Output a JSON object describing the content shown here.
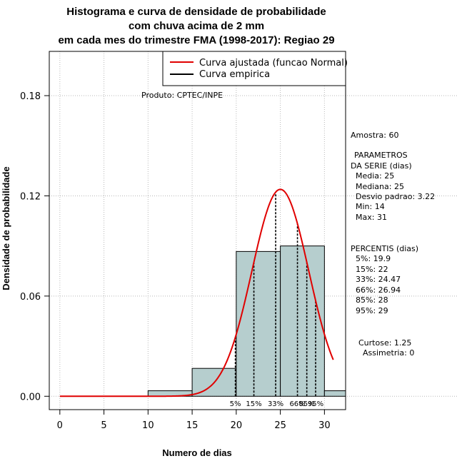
{
  "chart_data": {
    "type": "histogram",
    "title_lines": [
      "Histograma e curva de densidade de probabilidade",
      "com chuva acima de 2 mm",
      "em cada mes do trimestre FMA (1998-2017): Regiao 29"
    ],
    "xlabel": "Numero de dias",
    "ylabel": "Densidade de probabilidade",
    "xlim": [
      -1.2,
      32.4
    ],
    "ylim": [
      -0.008,
      0.2065
    ],
    "x_ticks": [
      0,
      5,
      10,
      15,
      20,
      25,
      30
    ],
    "y_ticks": [
      0.0,
      0.06,
      0.12,
      0.18
    ],
    "y_tick_labels": [
      "0.00",
      "0.06",
      "0.12",
      "0.18"
    ],
    "bins": [
      {
        "start": 10,
        "end": 15,
        "density": 0.0033
      },
      {
        "start": 15,
        "end": 20,
        "density": 0.0167
      },
      {
        "start": 20,
        "end": 25,
        "density": 0.0867
      },
      {
        "start": 25,
        "end": 30,
        "density": 0.09
      },
      {
        "start": 30,
        "end": 35,
        "density": 0.0033
      }
    ],
    "curve": {
      "name": "Curva ajustada (funcao Normal)",
      "mean": 25,
      "sd": 3.22,
      "x_from": 0,
      "x_to": 31,
      "color": "#e00000"
    },
    "empirical_name": "Curva empirica",
    "percentile_lines": [
      {
        "label": "5%",
        "x": 19.9
      },
      {
        "label": "15%",
        "x": 22
      },
      {
        "label": "33%",
        "x": 24.47
      },
      {
        "label": "66%",
        "x": 26.94
      },
      {
        "label": "85%",
        "x": 28
      },
      {
        "label": "95%",
        "x": 29
      }
    ],
    "bar_color": "#b6cece",
    "grid_color": "#b8b8b8",
    "product_label": "Produto: CPTEC/INPE"
  },
  "side_panel": {
    "sample": "Amostra: 60",
    "params_title_1": "PARAMETROS",
    "params_title_2": "DA SERIE (dias)",
    "media": "Media: 25",
    "mediana": "Mediana: 25",
    "desvio": "Desvio padrao: 3.22",
    "min": "Min: 14",
    "max": "Max: 31",
    "percentis_title": "PERCENTIS (dias)",
    "p5": "5%: 19.9",
    "p15": "15%: 22",
    "p33": "33%: 24.47",
    "p66": "66%: 26.94",
    "p85": "85%: 28",
    "p95": "95%: 29",
    "curtose": "Curtose: 1.25",
    "assimetria": "Assimetria: 0"
  }
}
